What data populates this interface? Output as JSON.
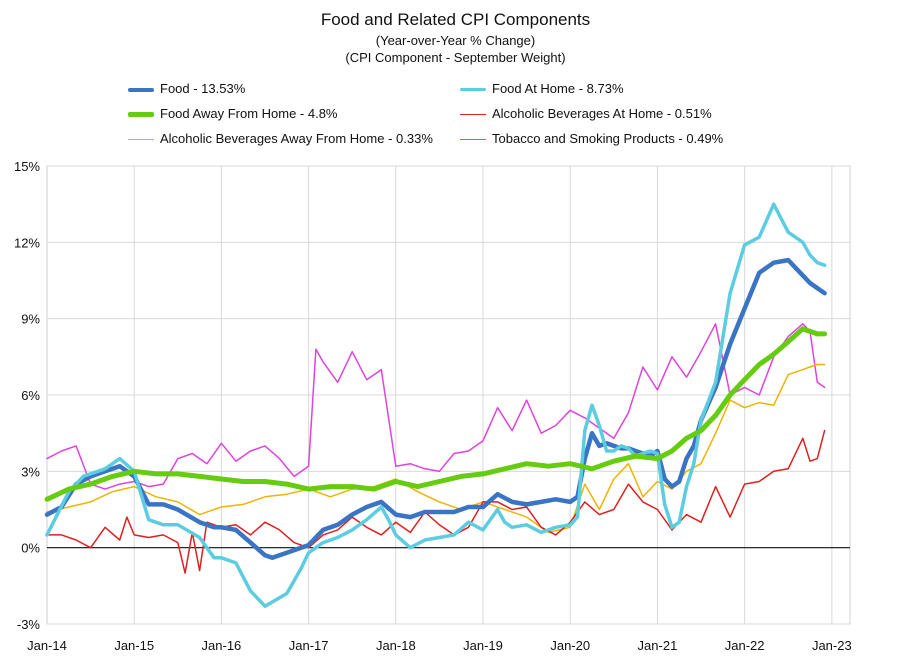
{
  "chart_data": {
    "type": "line",
    "title": "Food and Related CPI Components",
    "subtitle_lines": [
      "(Year-over-Year % Change)",
      "(CPI Component - September Weight)"
    ],
    "ylim": [
      -3,
      15
    ],
    "yticks": [
      "-3%",
      "0%",
      "3%",
      "6%",
      "9%",
      "12%",
      "15%"
    ],
    "ytick_values": [
      -3,
      0,
      3,
      6,
      9,
      12,
      15
    ],
    "xticks": [
      "Jan-14",
      "Jan-15",
      "Jan-16",
      "Jan-17",
      "Jan-18",
      "Jan-19",
      "Jan-20",
      "Jan-21",
      "Jan-22",
      "Jan-23"
    ],
    "xtick_values": [
      0,
      12,
      24,
      36,
      48,
      60,
      72,
      84,
      96,
      108
    ],
    "x_unit": "months since Jan-2014",
    "grid": true,
    "series": [
      {
        "name": "Food At Home - 8.73%",
        "color": "#5ccde0",
        "width": 3.5,
        "x": [
          0,
          3,
          5,
          8,
          10,
          12,
          14,
          16,
          18,
          21,
          23,
          24,
          26,
          28,
          30,
          33,
          34,
          35,
          36,
          38,
          40,
          42,
          44,
          46,
          47,
          48,
          50,
          52,
          54,
          56,
          58,
          60,
          62,
          63,
          64,
          66,
          68,
          70,
          72,
          73,
          74,
          75,
          76,
          77,
          78,
          79,
          80,
          81,
          82,
          83,
          84,
          85,
          86,
          87,
          88,
          89,
          90,
          92,
          94,
          96,
          98,
          100,
          102,
          104,
          105,
          106,
          107
        ],
        "values": [
          0.5,
          2.2,
          2.8,
          3.1,
          3.5,
          3.0,
          1.1,
          0.9,
          0.9,
          0.4,
          -0.4,
          -0.4,
          -0.6,
          -1.7,
          -2.3,
          -1.8,
          -1.3,
          -0.8,
          -0.2,
          0.2,
          0.4,
          0.7,
          1.1,
          1.6,
          1.1,
          0.5,
          0.0,
          0.3,
          0.4,
          0.5,
          1.0,
          0.7,
          1.5,
          1.0,
          0.8,
          0.9,
          0.6,
          0.8,
          0.9,
          1.2,
          4.6,
          5.6,
          4.8,
          3.8,
          3.8,
          4.0,
          3.9,
          3.6,
          3.7,
          3.8,
          3.7,
          1.7,
          0.8,
          1.0,
          2.4,
          3.3,
          5.0,
          6.5,
          10.0,
          11.9,
          12.2,
          13.5,
          12.4,
          12.0,
          11.5,
          11.2,
          11.1
        ]
      },
      {
        "name": "Food - 13.53%",
        "color": "#3a74c4",
        "width": 4.5,
        "x": [
          0,
          2,
          4,
          6,
          8,
          10,
          12,
          14,
          16,
          18,
          21,
          23,
          24,
          26,
          28,
          30,
          31,
          33,
          36,
          38,
          40,
          42,
          44,
          46,
          48,
          50,
          52,
          54,
          56,
          58,
          60,
          62,
          64,
          66,
          68,
          70,
          72,
          73,
          74,
          75,
          76,
          77,
          78,
          79,
          80,
          81,
          82,
          83,
          84,
          85,
          86,
          87,
          88,
          89,
          90,
          92,
          94,
          96,
          98,
          100,
          102,
          104,
          105,
          106,
          107
        ],
        "values": [
          1.3,
          1.6,
          2.5,
          2.8,
          3.0,
          3.2,
          2.8,
          1.7,
          1.7,
          1.5,
          1.0,
          0.8,
          0.8,
          0.7,
          0.2,
          -0.3,
          -0.4,
          -0.2,
          0.1,
          0.7,
          0.9,
          1.3,
          1.6,
          1.8,
          1.3,
          1.2,
          1.4,
          1.4,
          1.4,
          1.6,
          1.6,
          2.1,
          1.8,
          1.7,
          1.8,
          1.9,
          1.8,
          2.0,
          3.5,
          4.5,
          4.0,
          4.1,
          4.0,
          3.9,
          3.9,
          3.8,
          3.7,
          3.6,
          3.8,
          2.7,
          2.4,
          2.6,
          3.5,
          4.0,
          5.0,
          6.3,
          8.0,
          9.4,
          10.8,
          11.2,
          11.3,
          10.7,
          10.4,
          10.2,
          10.0
        ]
      },
      {
        "name": "Food Away From Home - 4.8%",
        "color": "#66cc11",
        "width": 5,
        "x": [
          0,
          3,
          6,
          9,
          12,
          15,
          18,
          21,
          24,
          27,
          30,
          33,
          36,
          39,
          42,
          45,
          48,
          51,
          54,
          57,
          60,
          63,
          66,
          69,
          72,
          75,
          78,
          81,
          84,
          86,
          88,
          90,
          92,
          94,
          96,
          98,
          100,
          102,
          104,
          105,
          106,
          107
        ],
        "values": [
          1.9,
          2.3,
          2.5,
          2.8,
          3.0,
          2.9,
          2.9,
          2.8,
          2.7,
          2.6,
          2.6,
          2.5,
          2.3,
          2.4,
          2.4,
          2.3,
          2.6,
          2.4,
          2.6,
          2.8,
          2.9,
          3.1,
          3.3,
          3.2,
          3.3,
          3.1,
          3.4,
          3.6,
          3.5,
          3.8,
          4.3,
          4.6,
          5.2,
          6.0,
          6.6,
          7.2,
          7.6,
          8.1,
          8.6,
          8.5,
          8.4,
          8.4
        ]
      },
      {
        "name": "Alcoholic Beverages Away From Home - 0.33%",
        "color": "#f0b400",
        "width": 1.5,
        "x": [
          0,
          3,
          6,
          9,
          12,
          15,
          18,
          21,
          24,
          27,
          30,
          33,
          36,
          39,
          42,
          45,
          48,
          51,
          54,
          57,
          60,
          63,
          66,
          69,
          72,
          74,
          76,
          78,
          80,
          82,
          84,
          86,
          88,
          90,
          92,
          94,
          96,
          98,
          100,
          102,
          104,
          105,
          106,
          107
        ],
        "values": [
          1.4,
          1.6,
          1.8,
          2.2,
          2.4,
          2.0,
          1.8,
          1.3,
          1.6,
          1.7,
          2.0,
          2.1,
          2.3,
          2.0,
          2.3,
          2.4,
          2.7,
          2.2,
          1.8,
          1.5,
          1.8,
          1.5,
          1.2,
          0.6,
          0.8,
          2.5,
          1.5,
          2.7,
          3.3,
          2.0,
          2.6,
          2.3,
          3.0,
          3.3,
          4.5,
          5.8,
          5.5,
          5.7,
          5.6,
          6.8,
          7.0,
          7.1,
          7.2,
          7.2
        ]
      },
      {
        "name": "Alcoholic Beverages At Home - 0.51%",
        "color": "#dd2020",
        "width": 1.5,
        "x": [
          0,
          2,
          4,
          6,
          8,
          10,
          11,
          12,
          14,
          16,
          18,
          19,
          20,
          21,
          22,
          24,
          26,
          28,
          30,
          32,
          34,
          36,
          38,
          40,
          42,
          44,
          46,
          48,
          50,
          52,
          54,
          56,
          58,
          60,
          62,
          64,
          66,
          68,
          70,
          72,
          74,
          76,
          78,
          80,
          82,
          84,
          86,
          88,
          90,
          92,
          94,
          96,
          98,
          100,
          102,
          104,
          105,
          106,
          107
        ],
        "values": [
          0.5,
          0.5,
          0.3,
          0.0,
          0.8,
          0.3,
          1.2,
          0.5,
          0.4,
          0.5,
          0.2,
          -1.0,
          0.6,
          -0.9,
          1.0,
          0.8,
          0.9,
          0.5,
          1.0,
          0.7,
          0.2,
          0.0,
          0.5,
          0.7,
          1.2,
          0.8,
          0.5,
          1.0,
          0.6,
          1.4,
          0.9,
          0.5,
          0.8,
          1.8,
          1.8,
          1.5,
          1.6,
          0.8,
          0.5,
          1.0,
          1.8,
          1.3,
          1.5,
          2.5,
          1.8,
          1.5,
          0.7,
          1.3,
          1.0,
          2.4,
          1.2,
          2.5,
          2.6,
          3.0,
          3.1,
          4.3,
          3.4,
          3.5,
          4.6
        ]
      },
      {
        "name": "Tobacco and Smoking Products - 0.49%",
        "color": "#dd44dd",
        "width": 1.5,
        "x": [
          0,
          2,
          4,
          6,
          8,
          10,
          12,
          14,
          16,
          18,
          20,
          22,
          24,
          26,
          28,
          30,
          32,
          34,
          36,
          37,
          38,
          40,
          42,
          44,
          46,
          48,
          50,
          52,
          54,
          56,
          58,
          60,
          62,
          64,
          66,
          68,
          70,
          72,
          74,
          76,
          78,
          80,
          82,
          84,
          86,
          88,
          90,
          92,
          94,
          96,
          98,
          100,
          102,
          104,
          105,
          106,
          107
        ],
        "values": [
          3.5,
          3.8,
          4.0,
          2.5,
          2.3,
          2.5,
          2.6,
          2.4,
          2.5,
          3.5,
          3.7,
          3.3,
          4.1,
          3.4,
          3.8,
          4.0,
          3.5,
          2.8,
          3.2,
          7.8,
          7.3,
          6.5,
          7.7,
          6.6,
          7.0,
          3.2,
          3.3,
          3.1,
          3.0,
          3.7,
          3.8,
          4.2,
          5.5,
          4.6,
          5.8,
          4.5,
          4.8,
          5.4,
          5.1,
          4.7,
          4.3,
          5.3,
          7.1,
          6.2,
          7.5,
          6.7,
          7.7,
          8.8,
          6.0,
          6.3,
          6.0,
          7.5,
          8.3,
          8.8,
          8.5,
          6.5,
          6.3
        ]
      }
    ],
    "legend": [
      {
        "label": "Food - 13.53%",
        "color": "#3a74c4",
        "width": 4.5
      },
      {
        "label": "Food At Home - 8.73%",
        "color": "#5ccde0",
        "width": 3.5
      },
      {
        "label": "Food Away From Home - 4.8%",
        "color": "#66cc11",
        "width": 5
      },
      {
        "label": "Alcoholic Beverages At Home - 0.51%",
        "color": "#dd2020",
        "width": 1.5
      },
      {
        "label": "Alcoholic Beverages Away From Home - 0.33%",
        "color": "#f0b400",
        "width": 1.5
      },
      {
        "label": "Tobacco and Smoking Products - 0.49%",
        "color": "#dd44dd",
        "width": 1.5
      }
    ],
    "legend_placement": "top, two columns"
  }
}
